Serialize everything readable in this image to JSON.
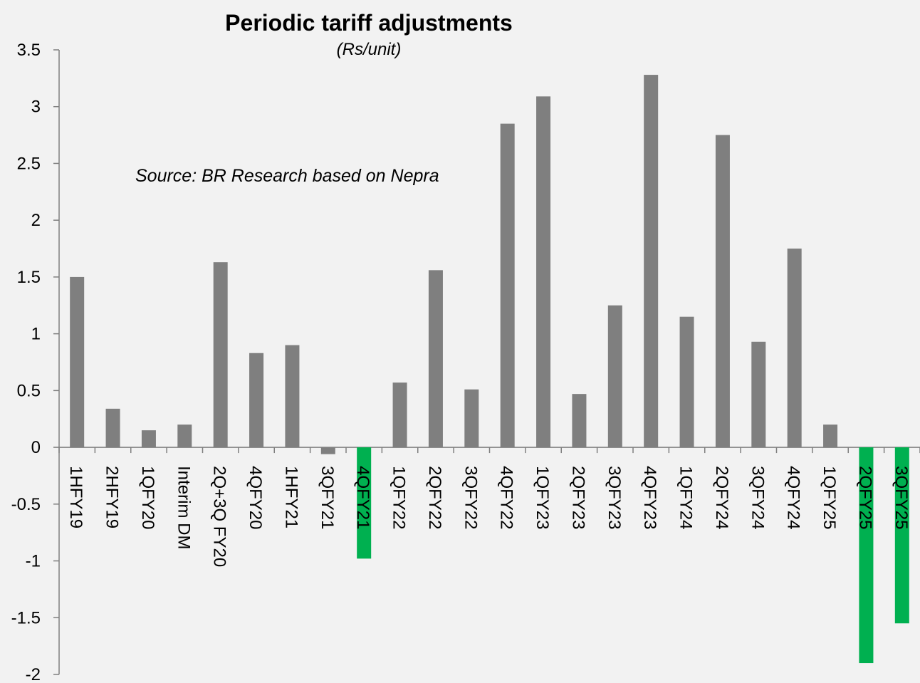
{
  "chart_data": {
    "type": "bar",
    "title": "Periodic tariff adjustments",
    "subtitle": "(Rs/unit)",
    "annotation": "Source: BR Research based on Nepra",
    "xlabel": "",
    "ylabel": "",
    "ylim": [
      -2,
      3.5
    ],
    "yticks": [
      "3.5",
      "3",
      "2.5",
      "2",
      "1.5",
      "1",
      "0.5",
      "0",
      "-0.5",
      "-1",
      "-1.5",
      "-2"
    ],
    "categories": [
      "1HFY19",
      "2HFY19",
      "1QFY20",
      "Interim DM",
      "2Q+3Q FY20",
      "4QFY20",
      "1HFY21",
      "3QFY21",
      "4QFY21",
      "1QFY22",
      "2QFY22",
      "3QFY22",
      "4QFY22",
      "1QFY23",
      "2QFY23",
      "3QFY23",
      "4QFY23",
      "1QFY24",
      "2QFY24",
      "3QFY24",
      "4QFY24",
      "1QFY25",
      "2QFY25",
      "3QFY25"
    ],
    "values": [
      1.5,
      0.34,
      0.15,
      0.2,
      1.63,
      0.83,
      0.9,
      -0.06,
      -0.98,
      0.57,
      1.56,
      0.51,
      2.85,
      3.09,
      0.47,
      1.25,
      3.28,
      1.15,
      2.75,
      0.93,
      1.75,
      0.2,
      -1.9,
      -1.55
    ],
    "colors": {
      "default": "#7f7f7f",
      "highlight": "#00b050"
    },
    "highlighted": [
      "4QFY21",
      "2QFY25",
      "3QFY25"
    ],
    "grid": false
  }
}
